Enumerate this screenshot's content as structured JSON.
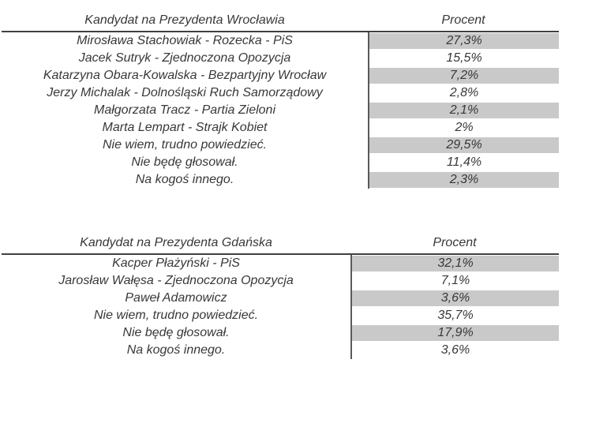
{
  "colors": {
    "background": "#ffffff",
    "text": "#383838",
    "row_shade": "#c9c9c9",
    "header_rule": "#404040",
    "column_divider": "#595959"
  },
  "chart_data": [
    {
      "type": "table",
      "title": "Kandydat na Prezydenta Wrocławia",
      "value_header": "Procent",
      "layout": {
        "shading": "alternating rows, first row shaded, percent column only",
        "grid": "header underline and vertical column divider only"
      },
      "rows": [
        {
          "label": "Mirosława Stachowiak - Rozecka - PiS",
          "value": "27,3%",
          "percent": 27.3,
          "shaded": true
        },
        {
          "label": "Jacek Sutryk - Zjednoczona Opozycja",
          "value": "15,5%",
          "percent": 15.5,
          "shaded": false
        },
        {
          "label": "Katarzyna Obara-Kowalska - Bezpartyjny Wrocław",
          "value": "7,2%",
          "percent": 7.2,
          "shaded": true
        },
        {
          "label": "Jerzy Michalak - Dolnośląski Ruch Samorządowy",
          "value": "2,8%",
          "percent": 2.8,
          "shaded": false
        },
        {
          "label": "Małgorzata Tracz - Partia Zieloni",
          "value": "2,1%",
          "percent": 2.1,
          "shaded": true
        },
        {
          "label": "Marta Lempart - Strajk Kobiet",
          "value": "2%",
          "percent": 2,
          "shaded": false
        },
        {
          "label": "Nie wiem, trudno powiedzieć.",
          "value": "29,5%",
          "percent": 29.5,
          "shaded": true
        },
        {
          "label": "Nie będę głosował.",
          "value": "11,4%",
          "percent": 11.4,
          "shaded": false
        },
        {
          "label": "Na kogoś innego.",
          "value": "2,3%",
          "percent": 2.3,
          "shaded": true
        }
      ]
    },
    {
      "type": "table",
      "title": "Kandydat na Prezydenta Gdańska",
      "value_header": "Procent",
      "layout": {
        "shading": "alternating rows, first row shaded, percent column only",
        "grid": "header underline and vertical column divider only"
      },
      "rows": [
        {
          "label": "Kacper Płażyński - PiS",
          "value": "32,1%",
          "percent": 32.1,
          "shaded": true
        },
        {
          "label": "Jarosław Wałęsa - Zjednoczona Opozycja",
          "value": "7,1%",
          "percent": 7.1,
          "shaded": false
        },
        {
          "label": "Paweł Adamowicz",
          "value": "3,6%",
          "percent": 3.6,
          "shaded": true
        },
        {
          "label": "Nie wiem, trudno powiedzieć.",
          "value": "35,7%",
          "percent": 35.7,
          "shaded": false
        },
        {
          "label": "Nie będę głosował.",
          "value": "17,9%",
          "percent": 17.9,
          "shaded": true
        },
        {
          "label": "Na kogoś innego.",
          "value": "3,6%",
          "percent": 3.6,
          "shaded": false
        }
      ]
    }
  ]
}
